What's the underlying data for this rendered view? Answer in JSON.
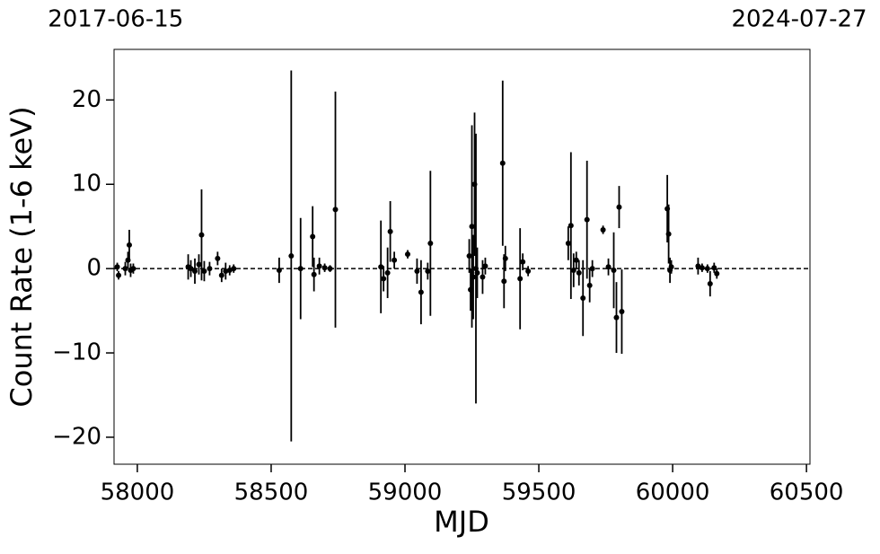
{
  "chart_data": {
    "type": "scatter",
    "xlabel": "MJD",
    "ylabel": "Count Rate (1-6 keV)",
    "xlim": [
      57913,
      60513
    ],
    "ylim": [
      -23.2,
      26
    ],
    "xticks": [
      58000,
      58500,
      59000,
      59500,
      60000,
      60500
    ],
    "yticks": [
      {
        "value": -20,
        "label": "−20"
      },
      {
        "value": -10,
        "label": "−10"
      },
      0,
      10,
      20
    ],
    "x2ticks": [
      {
        "value": 57919,
        "label": "2017-06-15"
      },
      {
        "value": 60518,
        "label": "2024-07-27"
      }
    ],
    "hline": 0,
    "color": "#000000",
    "x": [
      57925,
      57930,
      57955,
      57965,
      57970,
      57975,
      57985,
      58190,
      58200,
      58215,
      58230,
      58240,
      58250,
      58270,
      58300,
      58315,
      58330,
      58345,
      58360,
      58530,
      58575,
      58610,
      58655,
      58660,
      58680,
      58700,
      58720,
      58740,
      58910,
      58920,
      58935,
      58945,
      58960,
      59010,
      59045,
      59060,
      59085,
      59095,
      59240,
      59245,
      59250,
      59255,
      59260,
      59265,
      59270,
      59290,
      59300,
      59365,
      59370,
      59375,
      59430,
      59440,
      59460,
      59610,
      59620,
      59630,
      59640,
      59650,
      59665,
      59680,
      59690,
      59700,
      59740,
      59760,
      59780,
      59790,
      59800,
      59810,
      59980,
      59985,
      59990,
      59995,
      60095,
      60110,
      60130,
      60140,
      60155,
      60165
    ],
    "values": [
      0.2,
      -0.8,
      0,
      1,
      2.8,
      -0.2,
      0,
      0.2,
      0,
      -0.3,
      0.5,
      4,
      -0.3,
      0,
      1.2,
      -0.8,
      -0.3,
      -0.2,
      0,
      -0.2,
      1.5,
      0,
      3.8,
      -0.7,
      0.3,
      0.1,
      0,
      7,
      0.2,
      -1.2,
      -0.5,
      4.4,
      1,
      1.7,
      -0.3,
      -2.8,
      -0.3,
      3,
      1.5,
      -2.5,
      5,
      -1,
      10,
      0,
      -0.5,
      -1,
      0.3,
      12.5,
      -1.5,
      1.2,
      -1.2,
      0.8,
      -0.3,
      3,
      5.1,
      -0.2,
      1,
      -0.5,
      -3.5,
      5.8,
      -2,
      0,
      4.6,
      0.2,
      -0.2,
      -5.8,
      7.3,
      -5.1,
      7.1,
      4.1,
      -0.2,
      0.2,
      0.3,
      0.1,
      0,
      -1.8,
      0.1,
      -0.6
    ],
    "errors": [
      0.5,
      0.5,
      0.8,
      1,
      1.8,
      0.8,
      0.6,
      1.5,
      1,
      1.5,
      1.2,
      5.4,
      1.2,
      0.8,
      0.8,
      0.8,
      1,
      0.6,
      0.5,
      1.5,
      22,
      6,
      3.6,
      2,
      1,
      0.5,
      0.4,
      14,
      5.5,
      1.5,
      3,
      3.6,
      1,
      0.5,
      1.5,
      3.8,
      1,
      8.6,
      2,
      2.5,
      12,
      5,
      8.5,
      16,
      3,
      2,
      1,
      9.8,
      3.2,
      1.5,
      6,
      1,
      0.6,
      2,
      8.7,
      2,
      1,
      1.5,
      4.5,
      7,
      2,
      1,
      0.5,
      1,
      4.5,
      4.2,
      2.5,
      5,
      4,
      3.5,
      1.5,
      0.8,
      1,
      0.5,
      0.5,
      1.5,
      0.6,
      0.6
    ]
  }
}
